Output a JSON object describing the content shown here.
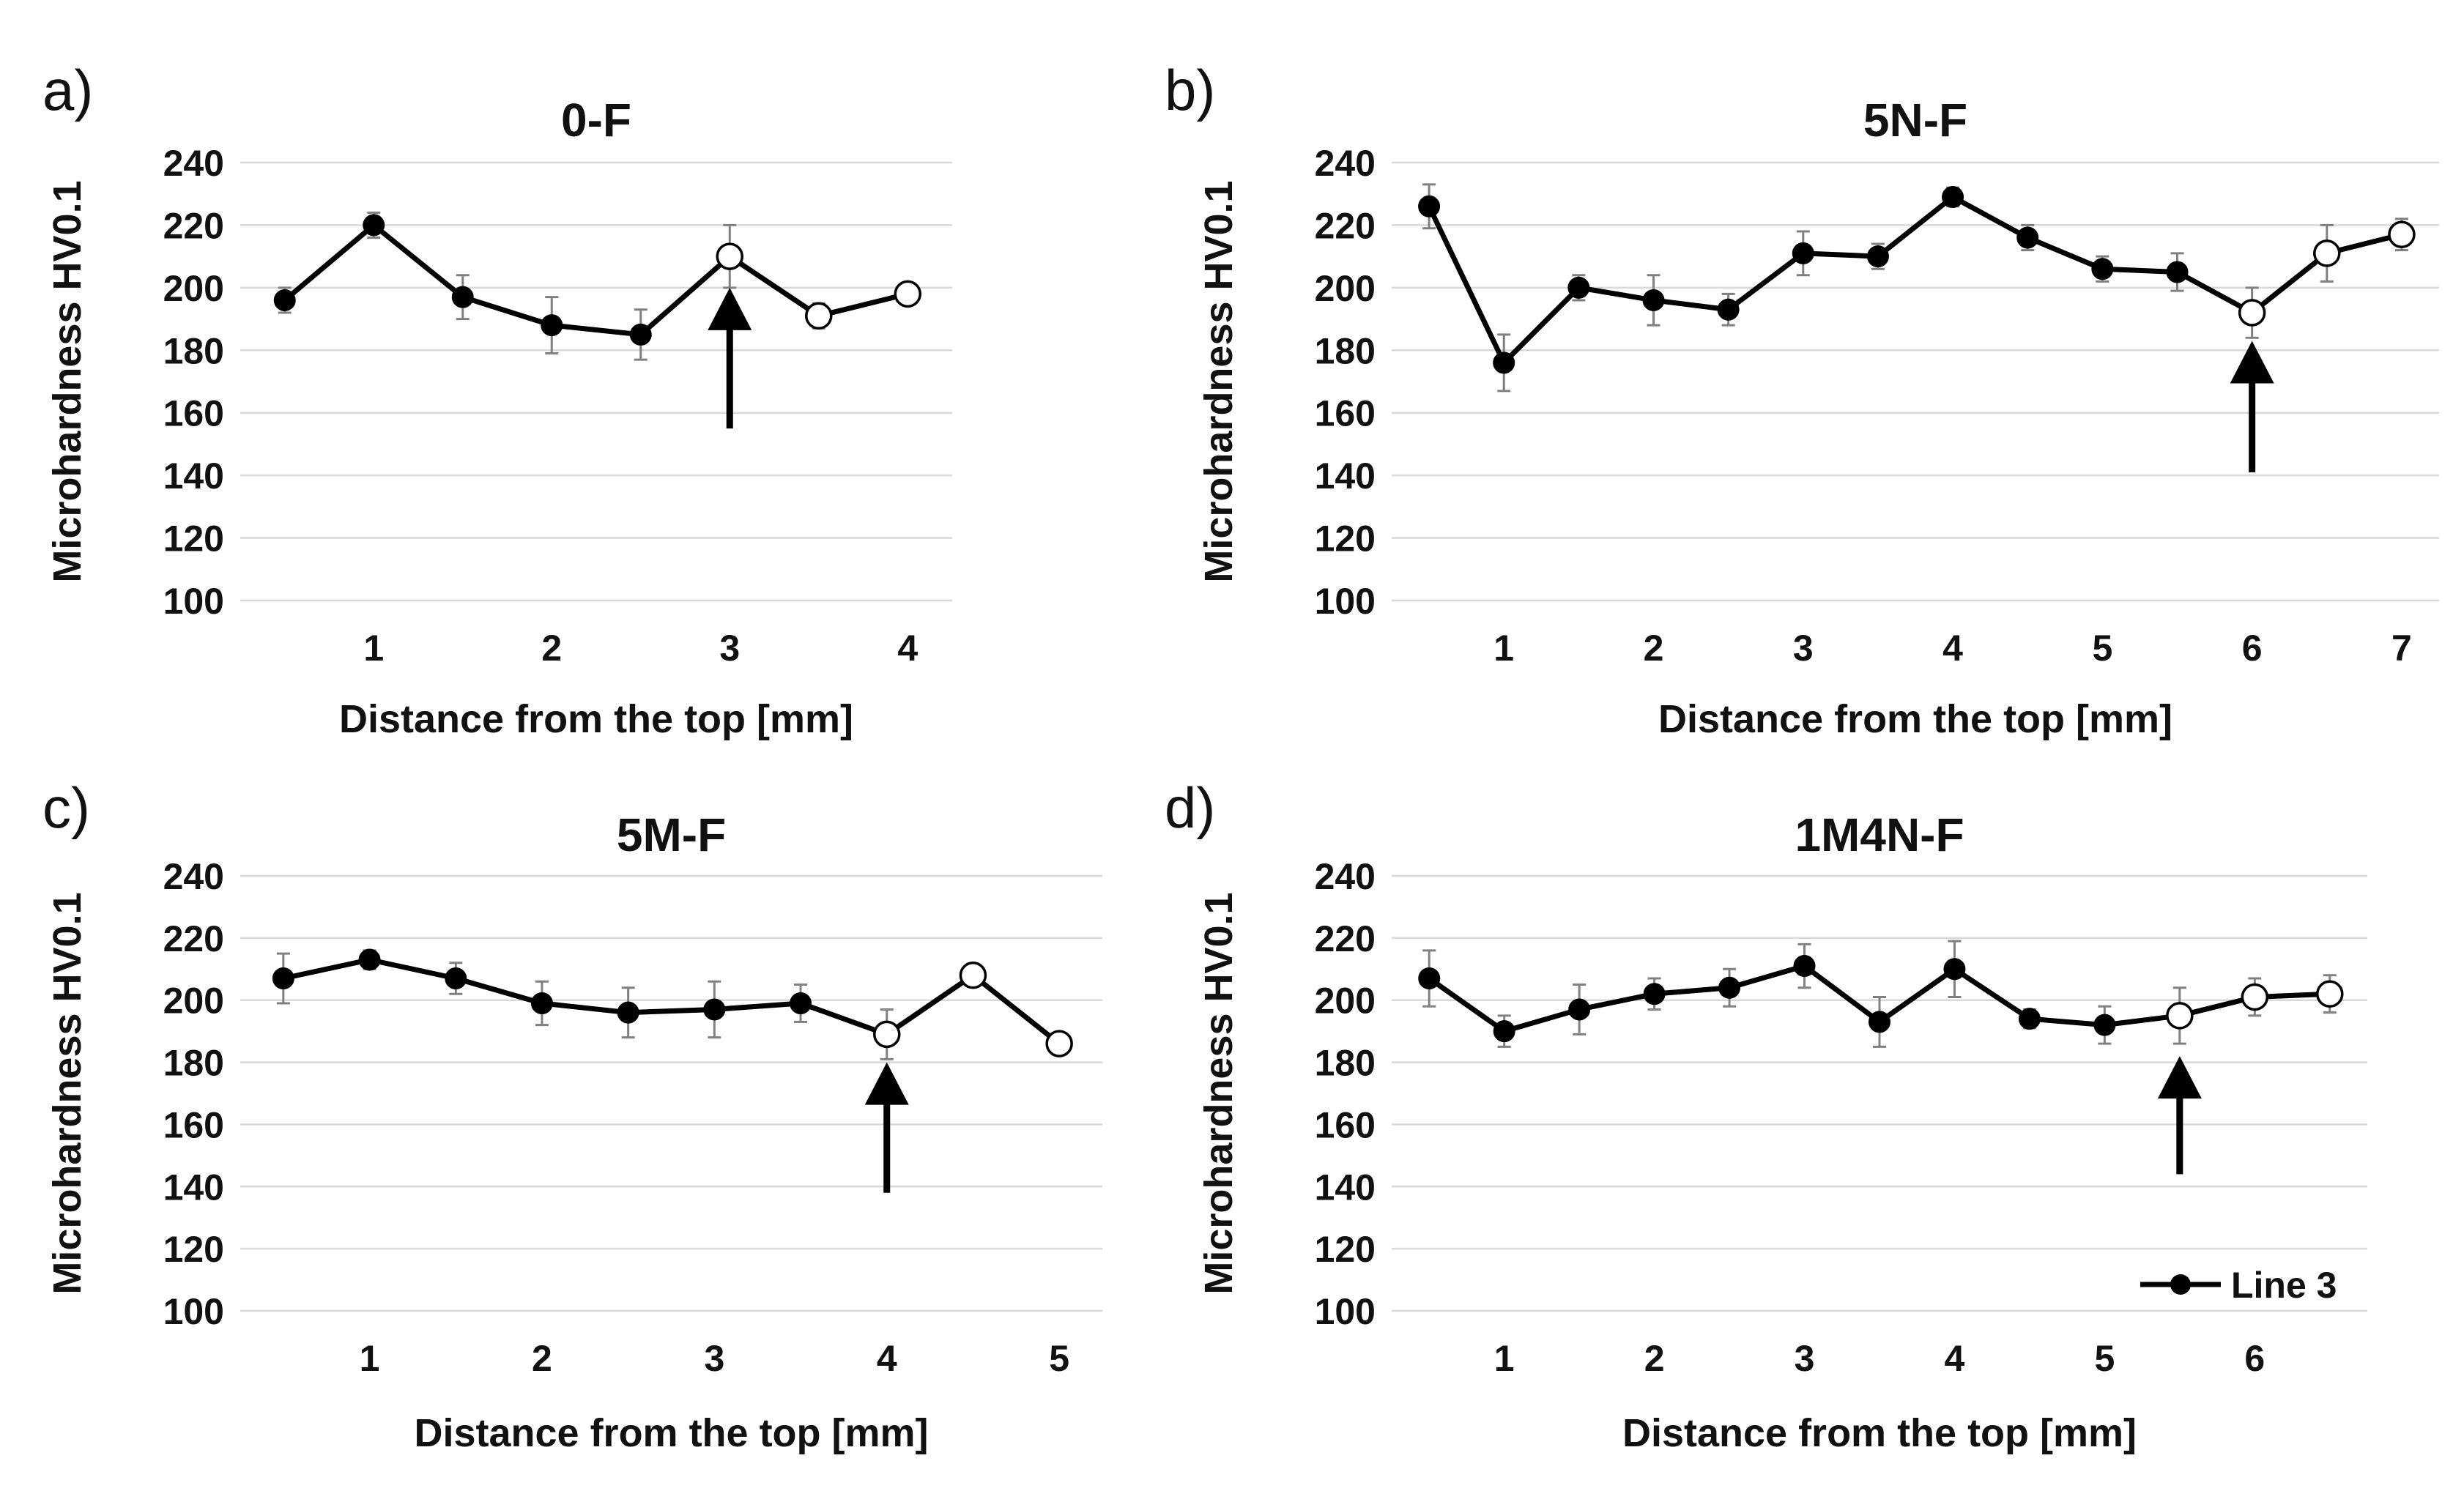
{
  "chart_data": [
    {
      "panel": "a)",
      "type": "line",
      "title": "0-F",
      "xlabel": "Distance from the top [mm]",
      "ylabel": "Microhardness HV0.1",
      "ylim": [
        100,
        240
      ],
      "yticks": [
        100,
        120,
        140,
        160,
        180,
        200,
        220,
        240
      ],
      "xlim": [
        0.25,
        4.25
      ],
      "xticks": [
        1,
        2,
        3,
        4
      ],
      "grid": true,
      "series": [
        {
          "name": "Line 3",
          "x": [
            0.5,
            1,
            1.5,
            2,
            2.5,
            3,
            3.5,
            4
          ],
          "values": [
            196,
            220,
            197,
            188,
            185,
            210,
            191,
            198
          ],
          "errors": [
            4,
            4,
            7,
            9,
            8,
            10,
            4,
            3
          ],
          "markers": [
            "filled",
            "filled",
            "filled",
            "filled",
            "filled",
            "open",
            "open",
            "open"
          ]
        }
      ],
      "annotation": {
        "type": "arrow",
        "x": 3,
        "y_from": 155,
        "y_to": 200
      }
    },
    {
      "panel": "b)",
      "type": "line",
      "title": "5N-F",
      "xlabel": "Distance from the top [mm]",
      "ylabel": "Microhardness HV0.1",
      "ylim": [
        100,
        240
      ],
      "yticks": [
        100,
        120,
        140,
        160,
        180,
        200,
        220,
        240
      ],
      "xlim": [
        0.25,
        7.25
      ],
      "xticks": [
        1,
        2,
        3,
        4,
        5,
        6,
        7
      ],
      "grid": true,
      "series": [
        {
          "name": "Line 3",
          "x": [
            0.5,
            1,
            1.5,
            2,
            2.5,
            3,
            3.5,
            4,
            4.5,
            5,
            5.5,
            6,
            6.5,
            7
          ],
          "values": [
            226,
            176,
            200,
            196,
            193,
            211,
            210,
            229,
            216,
            206,
            205,
            192,
            211,
            217
          ],
          "errors": [
            7,
            9,
            4,
            8,
            5,
            7,
            4,
            3,
            4,
            4,
            6,
            8,
            9,
            5
          ],
          "markers": [
            "filled",
            "filled",
            "filled",
            "filled",
            "filled",
            "filled",
            "filled",
            "filled",
            "filled",
            "filled",
            "filled",
            "open",
            "open",
            "open"
          ]
        }
      ],
      "annotation": {
        "type": "arrow",
        "x": 6,
        "y_from": 141,
        "y_to": 183
      }
    },
    {
      "panel": "c)",
      "type": "line",
      "title": "5M-F",
      "xlabel": "Distance from the top [mm]",
      "ylabel": "Microhardness HV0.1",
      "ylim": [
        100,
        240
      ],
      "yticks": [
        100,
        120,
        140,
        160,
        180,
        200,
        220,
        240
      ],
      "xlim": [
        0.25,
        5.25
      ],
      "xticks": [
        1,
        2,
        3,
        4,
        5
      ],
      "grid": true,
      "series": [
        {
          "name": "Line 3",
          "x": [
            0.5,
            1,
            1.5,
            2,
            2.5,
            3,
            3.5,
            4,
            4.5,
            5
          ],
          "values": [
            207,
            213,
            207,
            199,
            196,
            197,
            199,
            189,
            208,
            186
          ],
          "errors": [
            8,
            3,
            5,
            7,
            8,
            9,
            6,
            8,
            3,
            2
          ],
          "markers": [
            "filled",
            "filled",
            "filled",
            "filled",
            "filled",
            "filled",
            "filled",
            "open",
            "open",
            "open"
          ]
        }
      ],
      "annotation": {
        "type": "arrow",
        "x": 4,
        "y_from": 138,
        "y_to": 180
      }
    },
    {
      "panel": "d)",
      "type": "line",
      "title": "1M4N-F",
      "xlabel": "Distance from the top [mm]",
      "ylabel": "Microhardness HV0.1",
      "ylim": [
        100,
        240
      ],
      "yticks": [
        100,
        120,
        140,
        160,
        180,
        200,
        220,
        240
      ],
      "xlim": [
        0.25,
        6.75
      ],
      "xticks": [
        1,
        2,
        3,
        4,
        5,
        6
      ],
      "grid": true,
      "legend": {
        "label": "Line 3",
        "position": "bottom-right"
      },
      "series": [
        {
          "name": "Line 3",
          "x": [
            0.5,
            1,
            1.5,
            2,
            2.5,
            3,
            3.5,
            4,
            4.5,
            5,
            5.5,
            6,
            6.5
          ],
          "values": [
            207,
            190,
            197,
            202,
            204,
            211,
            193,
            210,
            194,
            192,
            195,
            201,
            202
          ],
          "errors": [
            9,
            5,
            8,
            5,
            6,
            7,
            8,
            9,
            3,
            6,
            9,
            6,
            6
          ],
          "markers": [
            "filled",
            "filled",
            "filled",
            "filled",
            "filled",
            "filled",
            "filled",
            "filled",
            "filled",
            "filled",
            "open",
            "open",
            "open"
          ]
        }
      ],
      "annotation": {
        "type": "arrow",
        "x": 5.5,
        "y_from": 144,
        "y_to": 182
      }
    }
  ]
}
